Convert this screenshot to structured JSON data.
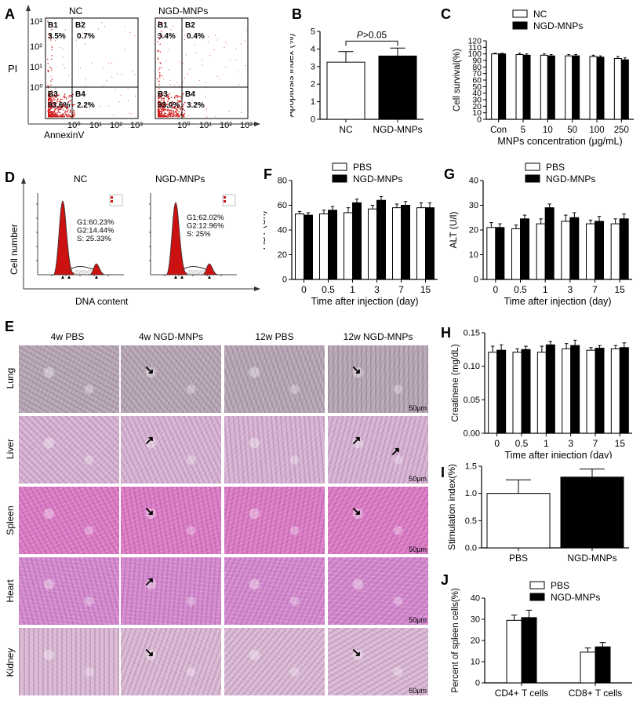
{
  "panel_letters": [
    "A",
    "B",
    "C",
    "D",
    "E",
    "F",
    "G",
    "H",
    "I",
    "J"
  ],
  "colors": {
    "pbs": "#ffffff",
    "ngd": "#000000",
    "flow_dots": "#d01818",
    "hist_fill": "#cc1111",
    "lung": "#b6a7b4",
    "liver": "#d7b3d3",
    "spleen": "#dc7bc6",
    "heart": "#d58ad0",
    "kidney": "#dab9d4"
  },
  "panel_a": {
    "plots": [
      {
        "title": "NC",
        "q": [
          "3.5%",
          "0.7%",
          "93.6%",
          "2.2%"
        ]
      },
      {
        "title": "NGD-MNPs",
        "q": [
          "3.4%",
          "0.4%",
          "93.0%",
          "3.2%"
        ]
      }
    ],
    "quadrants": [
      "B1",
      "B2",
      "B3",
      "B4"
    ],
    "ylabel": "PI",
    "xlabel": "AnnexinV",
    "xticks": [
      "10⁰",
      "10¹",
      "10²",
      "10³"
    ],
    "yticks": [
      "10⁰",
      "10¹",
      "10²",
      "10³"
    ]
  },
  "panel_d": {
    "plots": [
      {
        "title": "NC",
        "stats": [
          "G1:60.23%",
          "G2:14.44%",
          "S:   25.33%"
        ]
      },
      {
        "title": "NGD-MNPs",
        "stats": [
          "G1:62.02%",
          "G2:12.96%",
          "S:     25%"
        ]
      }
    ],
    "ylabel": "Cell number",
    "xlabel": "DNA content"
  },
  "panel_e": {
    "columns": [
      "4w PBS",
      "4w NGD-MNPs",
      "12w PBS",
      "12w NGD-MNPs"
    ],
    "rows": [
      "Lung",
      "Liver",
      "Spleen",
      "Heart",
      "Kidney"
    ],
    "scale": "50μm"
  },
  "chart_data": [
    {
      "panel": "B",
      "type": "bar",
      "categories": [
        "NC",
        "NGD-MNPs"
      ],
      "values": [
        3.25,
        3.6
      ],
      "errors": [
        0.6,
        0.45
      ],
      "ylabel": "Apoptosis index (%)",
      "ylim": [
        0,
        5
      ],
      "yticks": [
        0,
        1,
        2,
        3,
        4,
        5
      ],
      "annotation": "P>0.05",
      "annotation_parts": [
        "P",
        ">0.05"
      ]
    },
    {
      "panel": "C",
      "type": "bar",
      "categories": [
        "Con",
        "5",
        "10",
        "50",
        "100",
        "250"
      ],
      "series": [
        {
          "name": "NC",
          "values": [
            100,
            99,
            98,
            97,
            96,
            93
          ],
          "errors": [
            1,
            2,
            2,
            2,
            2,
            3
          ]
        },
        {
          "name": "NGD-MNPs",
          "values": [
            100,
            98,
            97,
            97,
            95,
            91
          ],
          "errors": [
            1,
            2,
            2,
            2,
            2,
            3
          ]
        }
      ],
      "ylabel": "Cell survival(%)",
      "xlabel": "MNPs concentration (μg/mL)",
      "ylim": [
        0,
        120
      ],
      "yticks": [
        0,
        10,
        20,
        30,
        40,
        50,
        60,
        70,
        80,
        90,
        100,
        110,
        120
      ]
    },
    {
      "panel": "F",
      "type": "bar",
      "categories": [
        "0",
        "0.5",
        "1",
        "3",
        "7",
        "15"
      ],
      "series": [
        {
          "name": "PBS",
          "values": [
            53,
            53,
            54,
            57,
            58,
            58
          ],
          "errors": [
            2,
            3,
            4,
            3,
            3,
            4
          ]
        },
        {
          "name": "NGD-MNPs",
          "values": [
            52,
            56,
            62,
            64,
            60,
            58
          ],
          "errors": [
            2,
            3,
            3,
            3,
            3,
            4
          ]
        }
      ],
      "ylabel": "AST (U/l)",
      "xlabel": "Time after injection (day)",
      "ylim": [
        0,
        80
      ],
      "yticks": [
        0,
        20,
        40,
        60,
        80
      ]
    },
    {
      "panel": "G",
      "type": "bar",
      "categories": [
        "0",
        "0.5",
        "1",
        "3",
        "7",
        "15"
      ],
      "series": [
        {
          "name": "PBS",
          "values": [
            21,
            20.5,
            22.5,
            23.5,
            22.5,
            22.5
          ],
          "errors": [
            2,
            1.5,
            2,
            2.5,
            1.5,
            2
          ]
        },
        {
          "name": "NGD-MNPs",
          "values": [
            21,
            24.5,
            29,
            25,
            23.5,
            24.5
          ],
          "errors": [
            1.5,
            1.5,
            1.5,
            2,
            2,
            2
          ]
        }
      ],
      "ylabel": "ALT (U/l)",
      "xlabel": "Time after injection (day)",
      "ylim": [
        0,
        40
      ],
      "yticks": [
        0,
        10,
        20,
        30,
        40
      ]
    },
    {
      "panel": "H",
      "type": "bar",
      "categories": [
        "0",
        "0.5",
        "1",
        "3",
        "7",
        "15"
      ],
      "series": [
        {
          "name": "PBS",
          "values": [
            0.121,
            0.121,
            0.121,
            0.126,
            0.124,
            0.126
          ],
          "errors": [
            0.009,
            0.005,
            0.009,
            0.008,
            0.004,
            0.005
          ]
        },
        {
          "name": "NGD-MNPs",
          "values": [
            0.124,
            0.125,
            0.132,
            0.131,
            0.127,
            0.128
          ],
          "errors": [
            0.008,
            0.005,
            0.005,
            0.008,
            0.004,
            0.007
          ]
        }
      ],
      "ylabel": "Creatinene (mg/dL)",
      "xlabel": "Time after injection (day)",
      "ylim": [
        0,
        0.15
      ],
      "yticks": [
        "0.00",
        "0.05",
        "0.10",
        "0.15"
      ]
    },
    {
      "panel": "I",
      "type": "bar",
      "categories": [
        "PBS",
        "NGD-MNPs"
      ],
      "values": [
        1.0,
        1.3
      ],
      "errors": [
        0.25,
        0.15
      ],
      "ylabel": "Stimulation index(%)",
      "ylim": [
        0,
        1.5
      ],
      "yticks": [
        "0.0",
        "0.5",
        "1.0",
        "1.5"
      ]
    },
    {
      "panel": "J",
      "type": "bar",
      "categories": [
        "CD4+ T cells",
        "CD8+ T cells"
      ],
      "series": [
        {
          "name": "PBS",
          "values": [
            29.5,
            14.5
          ],
          "errors": [
            2.5,
            2
          ]
        },
        {
          "name": "NGD-MNPs",
          "values": [
            30.8,
            17
          ],
          "errors": [
            3.5,
            2
          ]
        }
      ],
      "ylabel": "Percent of spleen cells(%)",
      "ylim": [
        0,
        40
      ],
      "yticks": [
        0,
        10,
        20,
        30,
        40
      ]
    }
  ]
}
